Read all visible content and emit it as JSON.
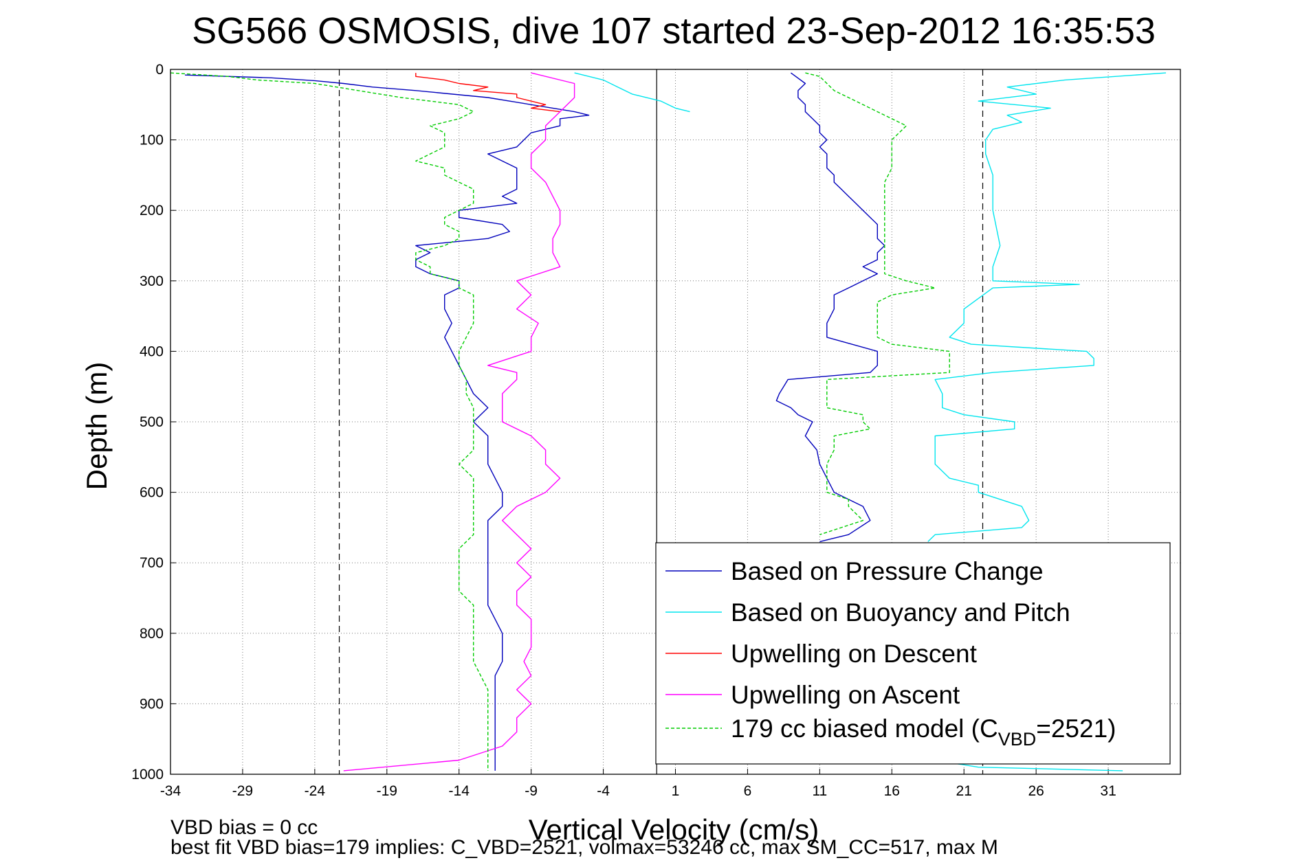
{
  "chart_data": {
    "type": "line",
    "title": "SG566 OSMOSIS, dive 107 started 23-Sep-2012 16:35:53",
    "xlabel": "Vertical Velocity (cm/s)",
    "ylabel": "Depth (m)",
    "xlim": [
      -34,
      36
    ],
    "ylim": [
      1000,
      0
    ],
    "y_reversed": true,
    "xticks": [
      -34,
      -29,
      -24,
      -19,
      -14,
      -9,
      -4,
      1,
      6,
      11,
      16,
      21,
      26,
      31
    ],
    "yticks": [
      0,
      100,
      200,
      300,
      400,
      500,
      600,
      700,
      800,
      900,
      1000
    ],
    "grid": true,
    "legend_position": "bottom-right",
    "reference_lines": [
      {
        "x": -22.3,
        "style": "dashed",
        "color": "#000000"
      },
      {
        "x": -0.3,
        "style": "solid",
        "color": "#000000"
      },
      {
        "x": 22.3,
        "style": "dashed",
        "color": "#000000"
      }
    ],
    "footnotes": [
      "VBD bias = 0 cc",
      "best fit VBD bias=179 implies: C_VBD=2521, volmax=53246 cc, max SM_CC=517, max M"
    ],
    "series": [
      {
        "name": "Based on Pressure Change",
        "color": "#0000bb",
        "style": "solid",
        "segments": [
          {
            "depth": [
              8,
              12,
              16,
              20,
              25,
              30,
              40,
              50,
              60,
              65,
              70,
              80,
              90,
              100,
              110,
              120,
              130,
              140,
              150,
              160,
              170,
              180,
              190,
              200,
              210,
              220,
              230,
              240,
              250,
              260,
              270,
              280,
              290,
              300,
              310,
              320,
              340,
              360,
              380,
              400,
              420,
              440,
              460,
              480,
              500,
              520,
              540,
              560,
              580,
              600,
              620,
              640,
              660,
              680,
              700,
              720,
              740,
              760,
              780,
              800,
              820,
              840,
              860,
              880,
              900,
              920,
              940,
              960,
              980,
              995
            ],
            "values": [
              -33,
              -27,
              -24,
              -22,
              -20,
              -17,
              -12,
              -9,
              -6,
              -5,
              -7,
              -7,
              -9,
              -9.5,
              -10,
              -12,
              -11,
              -10,
              -10,
              -10,
              -10,
              -11,
              -10,
              -14,
              -14,
              -11,
              -10.5,
              -12,
              -17,
              -16,
              -17,
              -17,
              -16,
              -14,
              -14,
              -15,
              -15,
              -14.5,
              -15,
              -14.5,
              -14,
              -13.5,
              -13,
              -12,
              -13,
              -12,
              -12,
              -12,
              -11.5,
              -11,
              -11,
              -12,
              -12,
              -12,
              -12,
              -12,
              -12,
              -12,
              -11.5,
              -11,
              -11,
              -11,
              -11.5,
              -11.5,
              -11.5,
              -11.5,
              -11.5,
              -11.5,
              -11.5,
              -11.5
            ]
          },
          {
            "depth": [
              5,
              20,
              30,
              40,
              50,
              60,
              70,
              80,
              90,
              100,
              110,
              120,
              130,
              140,
              150,
              160,
              170,
              180,
              190,
              200,
              210,
              220,
              230,
              240,
              250,
              260,
              270,
              280,
              290,
              300,
              310,
              320,
              340,
              360,
              380,
              400,
              420,
              430,
              440,
              450,
              460,
              470,
              480,
              490,
              500,
              520,
              540,
              560,
              580,
              600,
              620,
              640,
              660,
              670
            ],
            "values": [
              9,
              10,
              9.5,
              9.5,
              10,
              10,
              10.5,
              11,
              11,
              11.5,
              11,
              11.5,
              11.5,
              11.5,
              12,
              12,
              12.5,
              13,
              13.5,
              14,
              14.5,
              15,
              15,
              15,
              15.5,
              15,
              15,
              14,
              15,
              14,
              13,
              12,
              12,
              11.5,
              11.5,
              15,
              15,
              14.5,
              8.8,
              8.5,
              8.2,
              8.0,
              9,
              9.5,
              10.5,
              10,
              10.8,
              11,
              11.5,
              12,
              14,
              14.5,
              13,
              11
            ]
          }
        ]
      },
      {
        "name": "Based on Buoyancy and Pitch",
        "color": "#00e5ee",
        "style": "solid",
        "segments": [
          {
            "depth": [
              5,
              15,
              25,
              35,
              45,
              55,
              60
            ],
            "values": [
              -6,
              -4,
              -3,
              -2,
              0,
              1,
              2
            ]
          },
          {
            "depth": [
              5,
              15,
              25,
              35,
              45,
              55,
              65,
              75,
              85,
              100,
              120,
              150,
              200,
              250,
              280,
              300,
              305,
              310,
              340,
              360,
              380,
              390,
              400,
              410,
              420,
              430,
              440,
              460,
              480,
              490,
              500,
              510,
              520,
              540,
              560,
              580,
              590,
              600,
              620,
              640,
              650,
              660,
              670
            ],
            "values": [
              35,
              28,
              24,
              26,
              22,
              27,
              24,
              25,
              23,
              22.5,
              22.5,
              23,
              23,
              23.5,
              23,
              23,
              29,
              23,
              21,
              21,
              20,
              21.5,
              29.5,
              30,
              30,
              23,
              19,
              19.5,
              19.5,
              21,
              24.5,
              24.5,
              19,
              19,
              19,
              20,
              22,
              22,
              25,
              25.5,
              25,
              19,
              18.5
            ]
          },
          {
            "depth": [
              980,
              990,
              995
            ],
            "values": [
              19,
              22,
              32
            ]
          }
        ]
      },
      {
        "name": "Upwelling on Descent",
        "color": "#ff0000",
        "style": "solid",
        "segments": [
          {
            "depth": [
              5,
              10,
              15,
              20,
              25,
              30,
              35,
              40,
              45,
              50,
              55,
              60
            ],
            "values": [
              -17,
              -17,
              -15,
              -14,
              -12,
              -13,
              -10,
              -10,
              -9,
              -8,
              -9,
              -7
            ]
          }
        ]
      },
      {
        "name": "Upwelling on Ascent",
        "color": "#ff00ff",
        "style": "solid",
        "segments": [
          {
            "depth": [
              995,
              980,
              960,
              940,
              920,
              900,
              880,
              860,
              840,
              820,
              800,
              780,
              760,
              740,
              720,
              700,
              680,
              660,
              640,
              620,
              600,
              580,
              560,
              540,
              520,
              500,
              480,
              460,
              440,
              430,
              420,
              400,
              380,
              360,
              340,
              320,
              300,
              280,
              260,
              240,
              220,
              200,
              180,
              160,
              140,
              120,
              100,
              80,
              60,
              40,
              20,
              5
            ],
            "values": [
              -22,
              -14,
              -11,
              -10,
              -10,
              -9,
              -10,
              -9,
              -9.5,
              -9,
              -9,
              -9,
              -10,
              -10,
              -9,
              -10,
              -9,
              -10,
              -11,
              -10,
              -8,
              -7,
              -8,
              -8,
              -9,
              -11,
              -11,
              -11,
              -10,
              -10,
              -12,
              -9,
              -9,
              -8.5,
              -10,
              -9,
              -10,
              -7,
              -7.5,
              -7.5,
              -7,
              -7,
              -7.5,
              -8,
              -9,
              -9,
              -8,
              -8,
              -7,
              -6,
              -6,
              -9
            ]
          }
        ]
      },
      {
        "name": "179 cc biased model (C",
        "name_subscript": "VBD",
        "name_suffix": "=2521)",
        "color": "#00cc00",
        "style": "dashed",
        "segments": [
          {
            "depth": [
              5,
              10,
              15,
              20,
              30,
              40,
              50,
              60,
              70,
              80,
              90,
              100,
              110,
              120,
              130,
              140,
              150,
              160,
              170,
              180,
              190,
              200,
              210,
              220,
              230,
              240,
              250,
              260,
              270,
              280,
              290,
              300,
              310,
              320,
              340,
              360,
              380,
              400,
              420,
              440,
              460,
              480,
              500,
              520,
              540,
              560,
              580,
              600,
              620,
              640,
              660,
              680,
              700,
              720,
              740,
              760,
              780,
              800,
              820,
              840,
              860,
              880,
              900,
              920,
              940,
              960,
              980,
              995
            ],
            "values": [
              -34,
              -30,
              -28,
              -24,
              -21,
              -18,
              -14,
              -13,
              -14,
              -16,
              -15,
              -15,
              -15,
              -16,
              -17,
              -15,
              -15,
              -14,
              -13,
              -13,
              -13,
              -14,
              -15,
              -15,
              -14,
              -14,
              -15,
              -17,
              -17,
              -16,
              -16,
              -14,
              -14,
              -13,
              -13,
              -13,
              -13.5,
              -14,
              -14,
              -13.5,
              -13.5,
              -13,
              -13,
              -13,
              -13,
              -14,
              -13,
              -13,
              -13,
              -13,
              -13,
              -14,
              -14,
              -14,
              -14,
              -13,
              -13,
              -13,
              -13,
              -13,
              -12.5,
              -12,
              -12,
              -12,
              -12,
              -12,
              -12,
              -12
            ]
          },
          {
            "depth": [
              5,
              10,
              20,
              30,
              40,
              50,
              60,
              70,
              80,
              90,
              100,
              120,
              140,
              160,
              180,
              200,
              220,
              240,
              260,
              280,
              290,
              300,
              310,
              320,
              330,
              340,
              360,
              380,
              390,
              400,
              410,
              420,
              430,
              440,
              460,
              480,
              490,
              500,
              510,
              520,
              540,
              560,
              580,
              600,
              610,
              620,
              640,
              660
            ],
            "values": [
              10,
              11,
              11.5,
              12,
              13,
              14,
              15,
              16,
              17,
              16.5,
              16,
              16,
              16,
              15.5,
              15.5,
              15.5,
              15.5,
              15.5,
              15.5,
              15.5,
              15.5,
              17,
              19,
              16,
              15,
              15,
              15,
              15,
              16,
              20,
              20,
              20,
              20,
              11.5,
              11.5,
              11.5,
              14,
              14,
              14.5,
              12,
              12,
              11.5,
              11.5,
              11.5,
              13,
              13,
              14,
              11
            ]
          }
        ]
      }
    ]
  }
}
